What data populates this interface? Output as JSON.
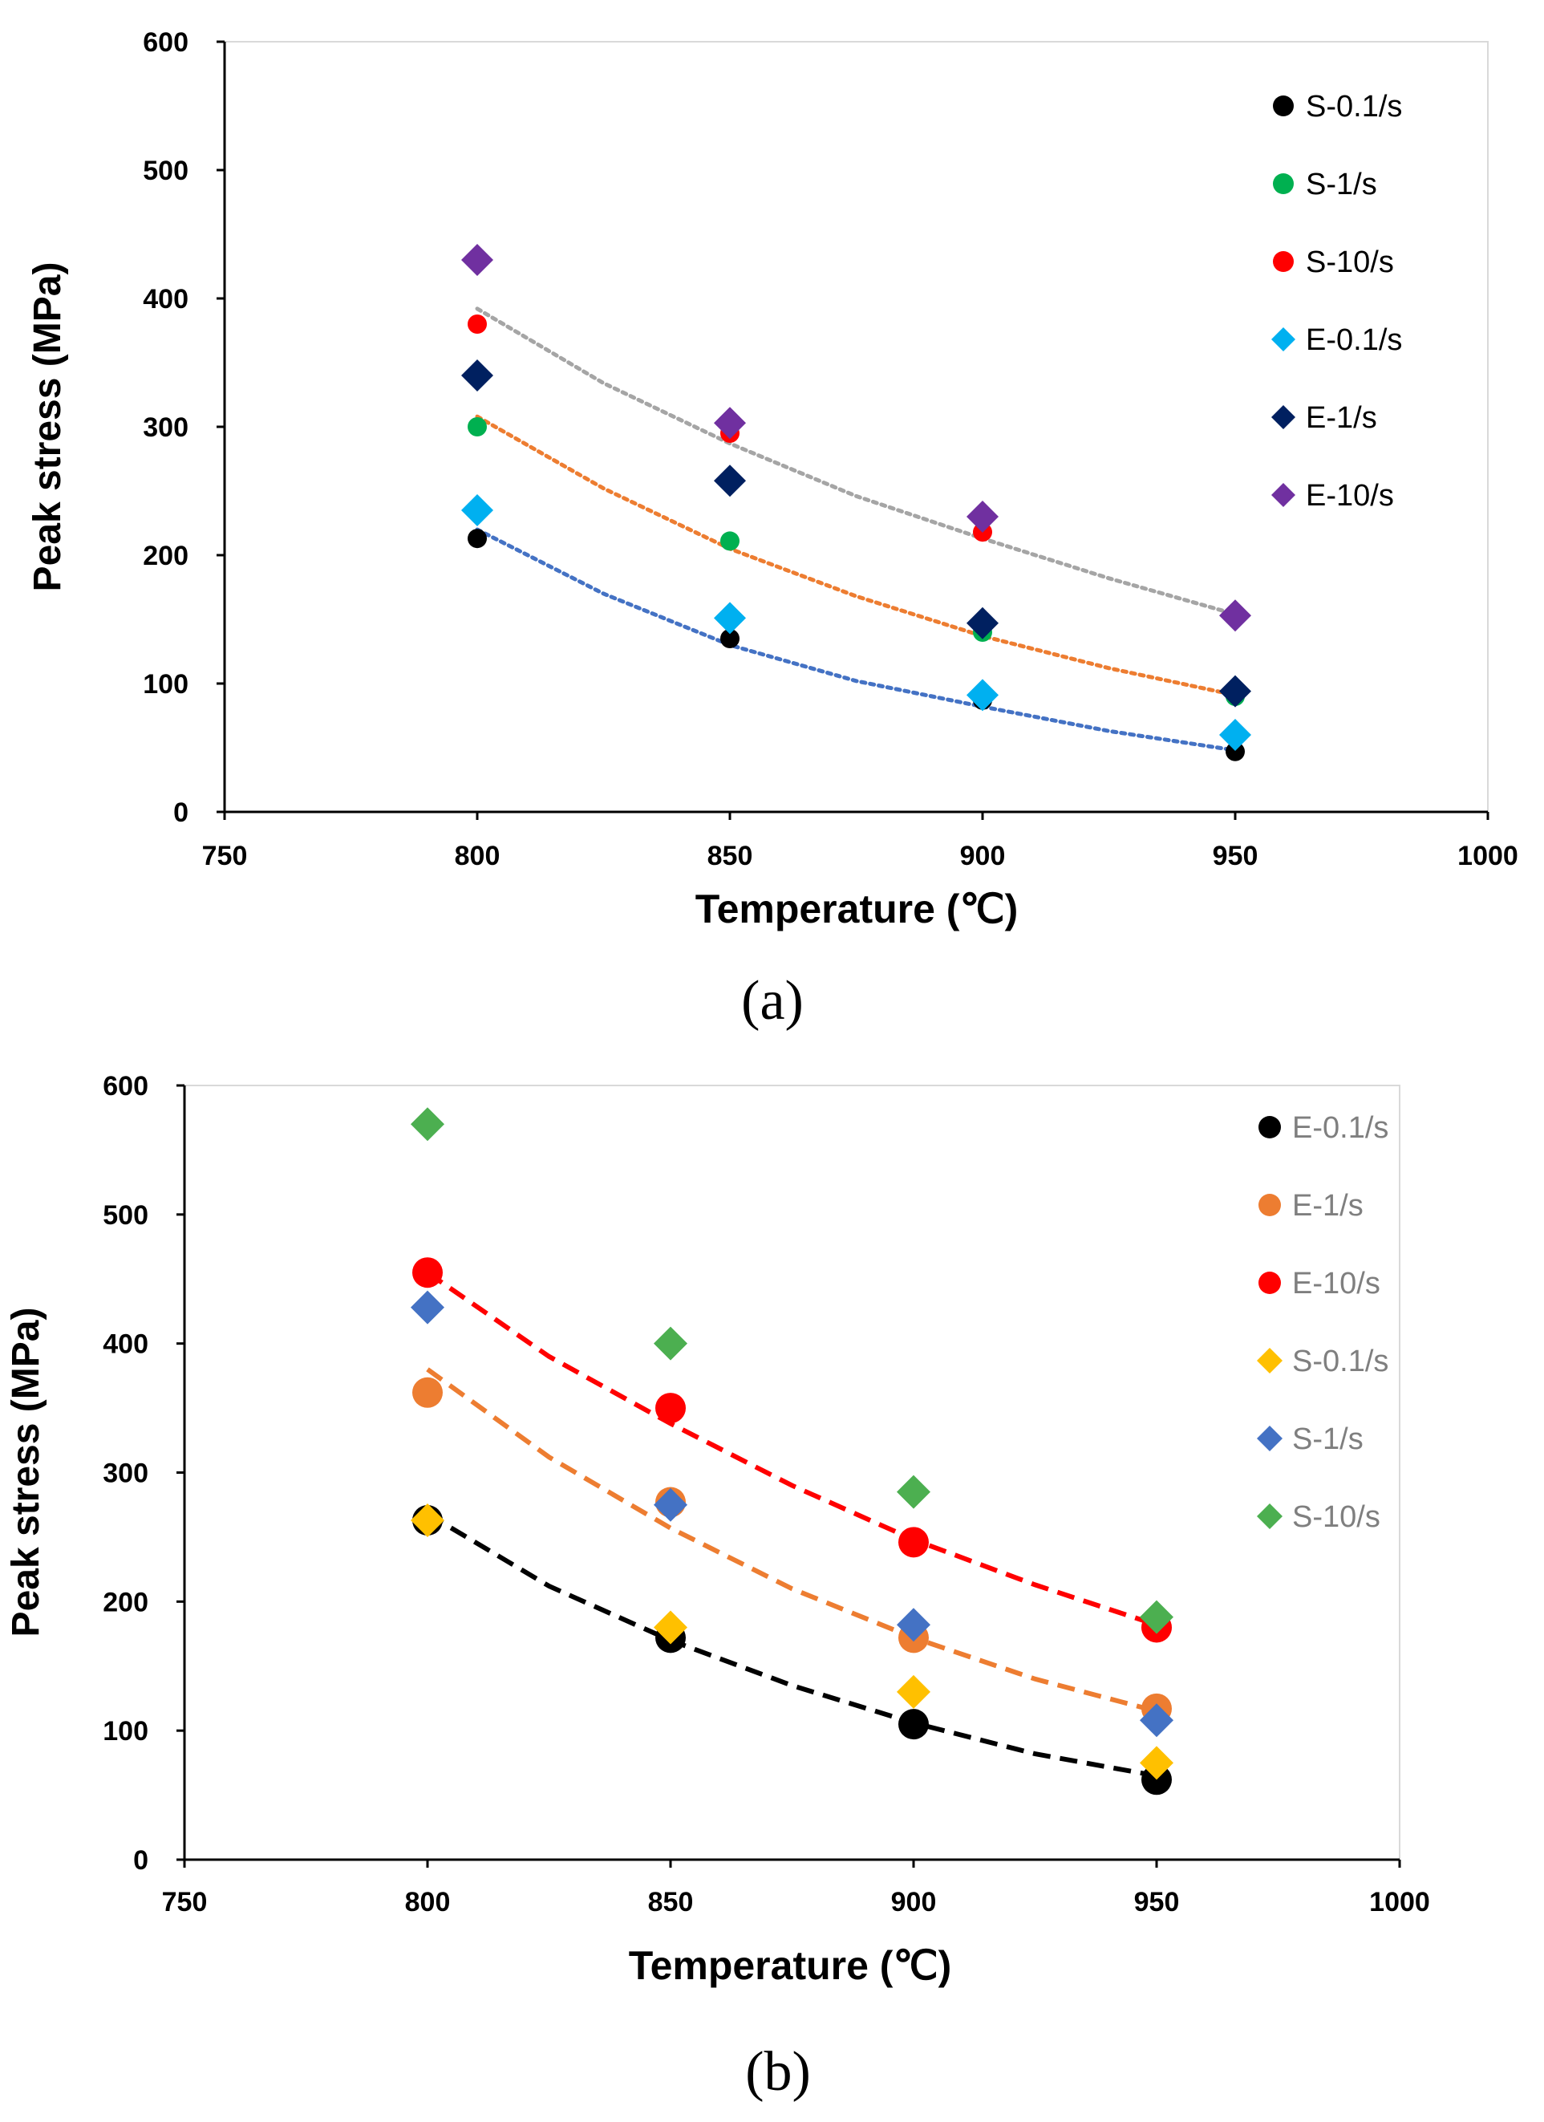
{
  "colors": {
    "background": "#ffffff",
    "axis": "#000000",
    "text": "#000000"
  },
  "chart_data": [
    {
      "type": "scatter",
      "panel_label": "(a)",
      "xlabel": "Temperature (℃)",
      "ylabel": "Peak stress (MPa)",
      "xlim": [
        750,
        1000
      ],
      "ylim": [
        0,
        600
      ],
      "xticks": [
        750,
        800,
        850,
        900,
        950,
        1000
      ],
      "yticks": [
        0,
        100,
        200,
        300,
        400,
        500,
        600
      ],
      "legend_text_color": "#000000",
      "legend_position": "top-right",
      "series": [
        {
          "name": "S-0.1/s",
          "marker": "circle",
          "color": "#000000",
          "x": [
            800,
            850,
            900,
            950
          ],
          "y": [
            213,
            135,
            87,
            47
          ]
        },
        {
          "name": "S-1/s",
          "marker": "circle",
          "color": "#00b050",
          "x": [
            800,
            850,
            900,
            950
          ],
          "y": [
            300,
            211,
            140,
            90
          ]
        },
        {
          "name": "S-10/s",
          "marker": "circle",
          "color": "#ff0000",
          "x": [
            800,
            850,
            900,
            950
          ],
          "y": [
            380,
            295,
            218,
            152
          ]
        },
        {
          "name": "E-0.1/s",
          "marker": "diamond",
          "color": "#00b0f0",
          "x": [
            800,
            850,
            900,
            950
          ],
          "y": [
            235,
            151,
            91,
            60
          ]
        },
        {
          "name": "E-1/s",
          "marker": "diamond",
          "color": "#002060",
          "x": [
            800,
            850,
            900,
            950
          ],
          "y": [
            340,
            258,
            147,
            94
          ]
        },
        {
          "name": "E-10/s",
          "marker": "diamond",
          "color": "#7030a0",
          "x": [
            800,
            850,
            900,
            950
          ],
          "y": [
            430,
            303,
            230,
            153
          ]
        }
      ],
      "trendlines": [
        {
          "color": "#4472c4",
          "style": "dotted",
          "x": [
            800,
            825,
            850,
            875,
            900,
            925,
            950
          ],
          "y": [
            220,
            170,
            130,
            102,
            82,
            63,
            48
          ]
        },
        {
          "color": "#ed7d31",
          "style": "dotted",
          "x": [
            800,
            825,
            850,
            875,
            900,
            925,
            950
          ],
          "y": [
            308,
            252,
            205,
            168,
            137,
            112,
            91
          ]
        },
        {
          "color": "#a5a5a5",
          "style": "dotted",
          "x": [
            800,
            825,
            850,
            875,
            900,
            925,
            950
          ],
          "y": [
            392,
            334,
            287,
            246,
            213,
            182,
            154
          ]
        }
      ]
    },
    {
      "type": "scatter",
      "panel_label": "(b)",
      "xlabel": "Temperature (℃)",
      "ylabel": "Peak stress (MPa)",
      "xlim": [
        750,
        1000
      ],
      "ylim": [
        0,
        600
      ],
      "xticks": [
        750,
        800,
        850,
        900,
        950,
        1000
      ],
      "yticks": [
        0,
        100,
        200,
        300,
        400,
        500,
        600
      ],
      "legend_text_color": "#7f7f7f",
      "legend_position": "top-right",
      "series": [
        {
          "name": "E-0.1/s",
          "marker": "circle",
          "color": "#000000",
          "x": [
            800,
            850,
            900,
            950
          ],
          "y": [
            263,
            172,
            105,
            62
          ]
        },
        {
          "name": "E-1/s",
          "marker": "circle",
          "color": "#ed7d31",
          "x": [
            800,
            850,
            900,
            950
          ],
          "y": [
            362,
            277,
            172,
            117
          ]
        },
        {
          "name": "E-10/s",
          "marker": "circle",
          "color": "#ff0000",
          "x": [
            800,
            850,
            900,
            950
          ],
          "y": [
            455,
            350,
            246,
            180
          ]
        },
        {
          "name": "S-0.1/s",
          "marker": "diamond",
          "color": "#ffc000",
          "x": [
            800,
            850,
            900,
            950
          ],
          "y": [
            263,
            180,
            130,
            75
          ]
        },
        {
          "name": "S-1/s",
          "marker": "diamond",
          "color": "#4472c4",
          "x": [
            800,
            850,
            900,
            950
          ],
          "y": [
            428,
            275,
            182,
            108
          ]
        },
        {
          "name": "S-10/s",
          "marker": "diamond",
          "color": "#4caf50",
          "x": [
            800,
            850,
            900,
            950
          ],
          "y": [
            570,
            400,
            285,
            188
          ]
        }
      ],
      "trendlines": [
        {
          "color": "#000000",
          "style": "dashed",
          "x": [
            800,
            825,
            850,
            875,
            900,
            925,
            950
          ],
          "y": [
            268,
            212,
            170,
            135,
            106,
            82,
            65
          ]
        },
        {
          "color": "#ed7d31",
          "style": "dashed",
          "x": [
            800,
            825,
            850,
            875,
            900,
            925,
            950
          ],
          "y": [
            380,
            312,
            257,
            210,
            172,
            140,
            115
          ]
        },
        {
          "color": "#ff0000",
          "style": "dashed",
          "x": [
            800,
            825,
            850,
            875,
            900,
            925,
            950
          ],
          "y": [
            455,
            390,
            338,
            290,
            248,
            213,
            182
          ]
        }
      ]
    }
  ]
}
